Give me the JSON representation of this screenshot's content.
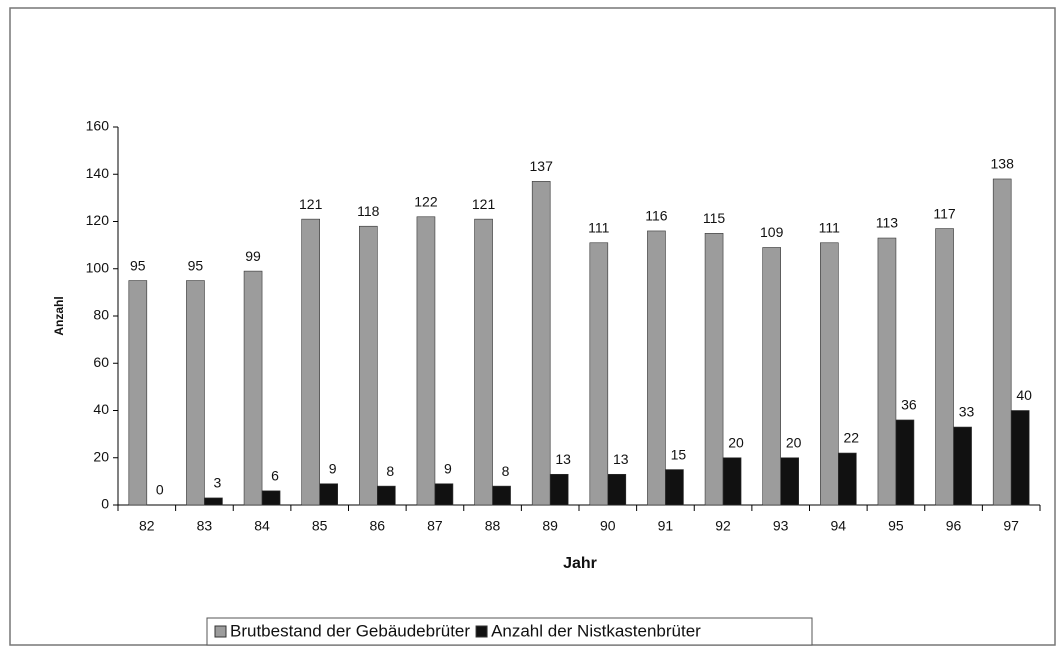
{
  "chart_data": {
    "type": "bar",
    "x_label": "Jahr",
    "y_label": "Anzahl",
    "categories": [
      "82",
      "83",
      "84",
      "85",
      "86",
      "87",
      "88",
      "89",
      "90",
      "91",
      "92",
      "93",
      "94",
      "95",
      "96",
      "97"
    ],
    "series": [
      {
        "name": "Brutbestand der Gebäudebrüter",
        "color": "#9c9c9c",
        "values": [
          95,
          95,
          99,
          121,
          118,
          122,
          121,
          137,
          111,
          116,
          115,
          109,
          111,
          113,
          117,
          138
        ]
      },
      {
        "name": "Anzahl der Nistkastenbrüter",
        "color": "#111111",
        "values": [
          0,
          3,
          6,
          9,
          8,
          9,
          8,
          13,
          13,
          15,
          20,
          20,
          22,
          36,
          33,
          40
        ]
      }
    ],
    "ylim": [
      0,
      160
    ],
    "yticks": [
      0,
      20,
      40,
      60,
      80,
      100,
      120,
      140,
      160
    ],
    "legend": "bottom"
  }
}
